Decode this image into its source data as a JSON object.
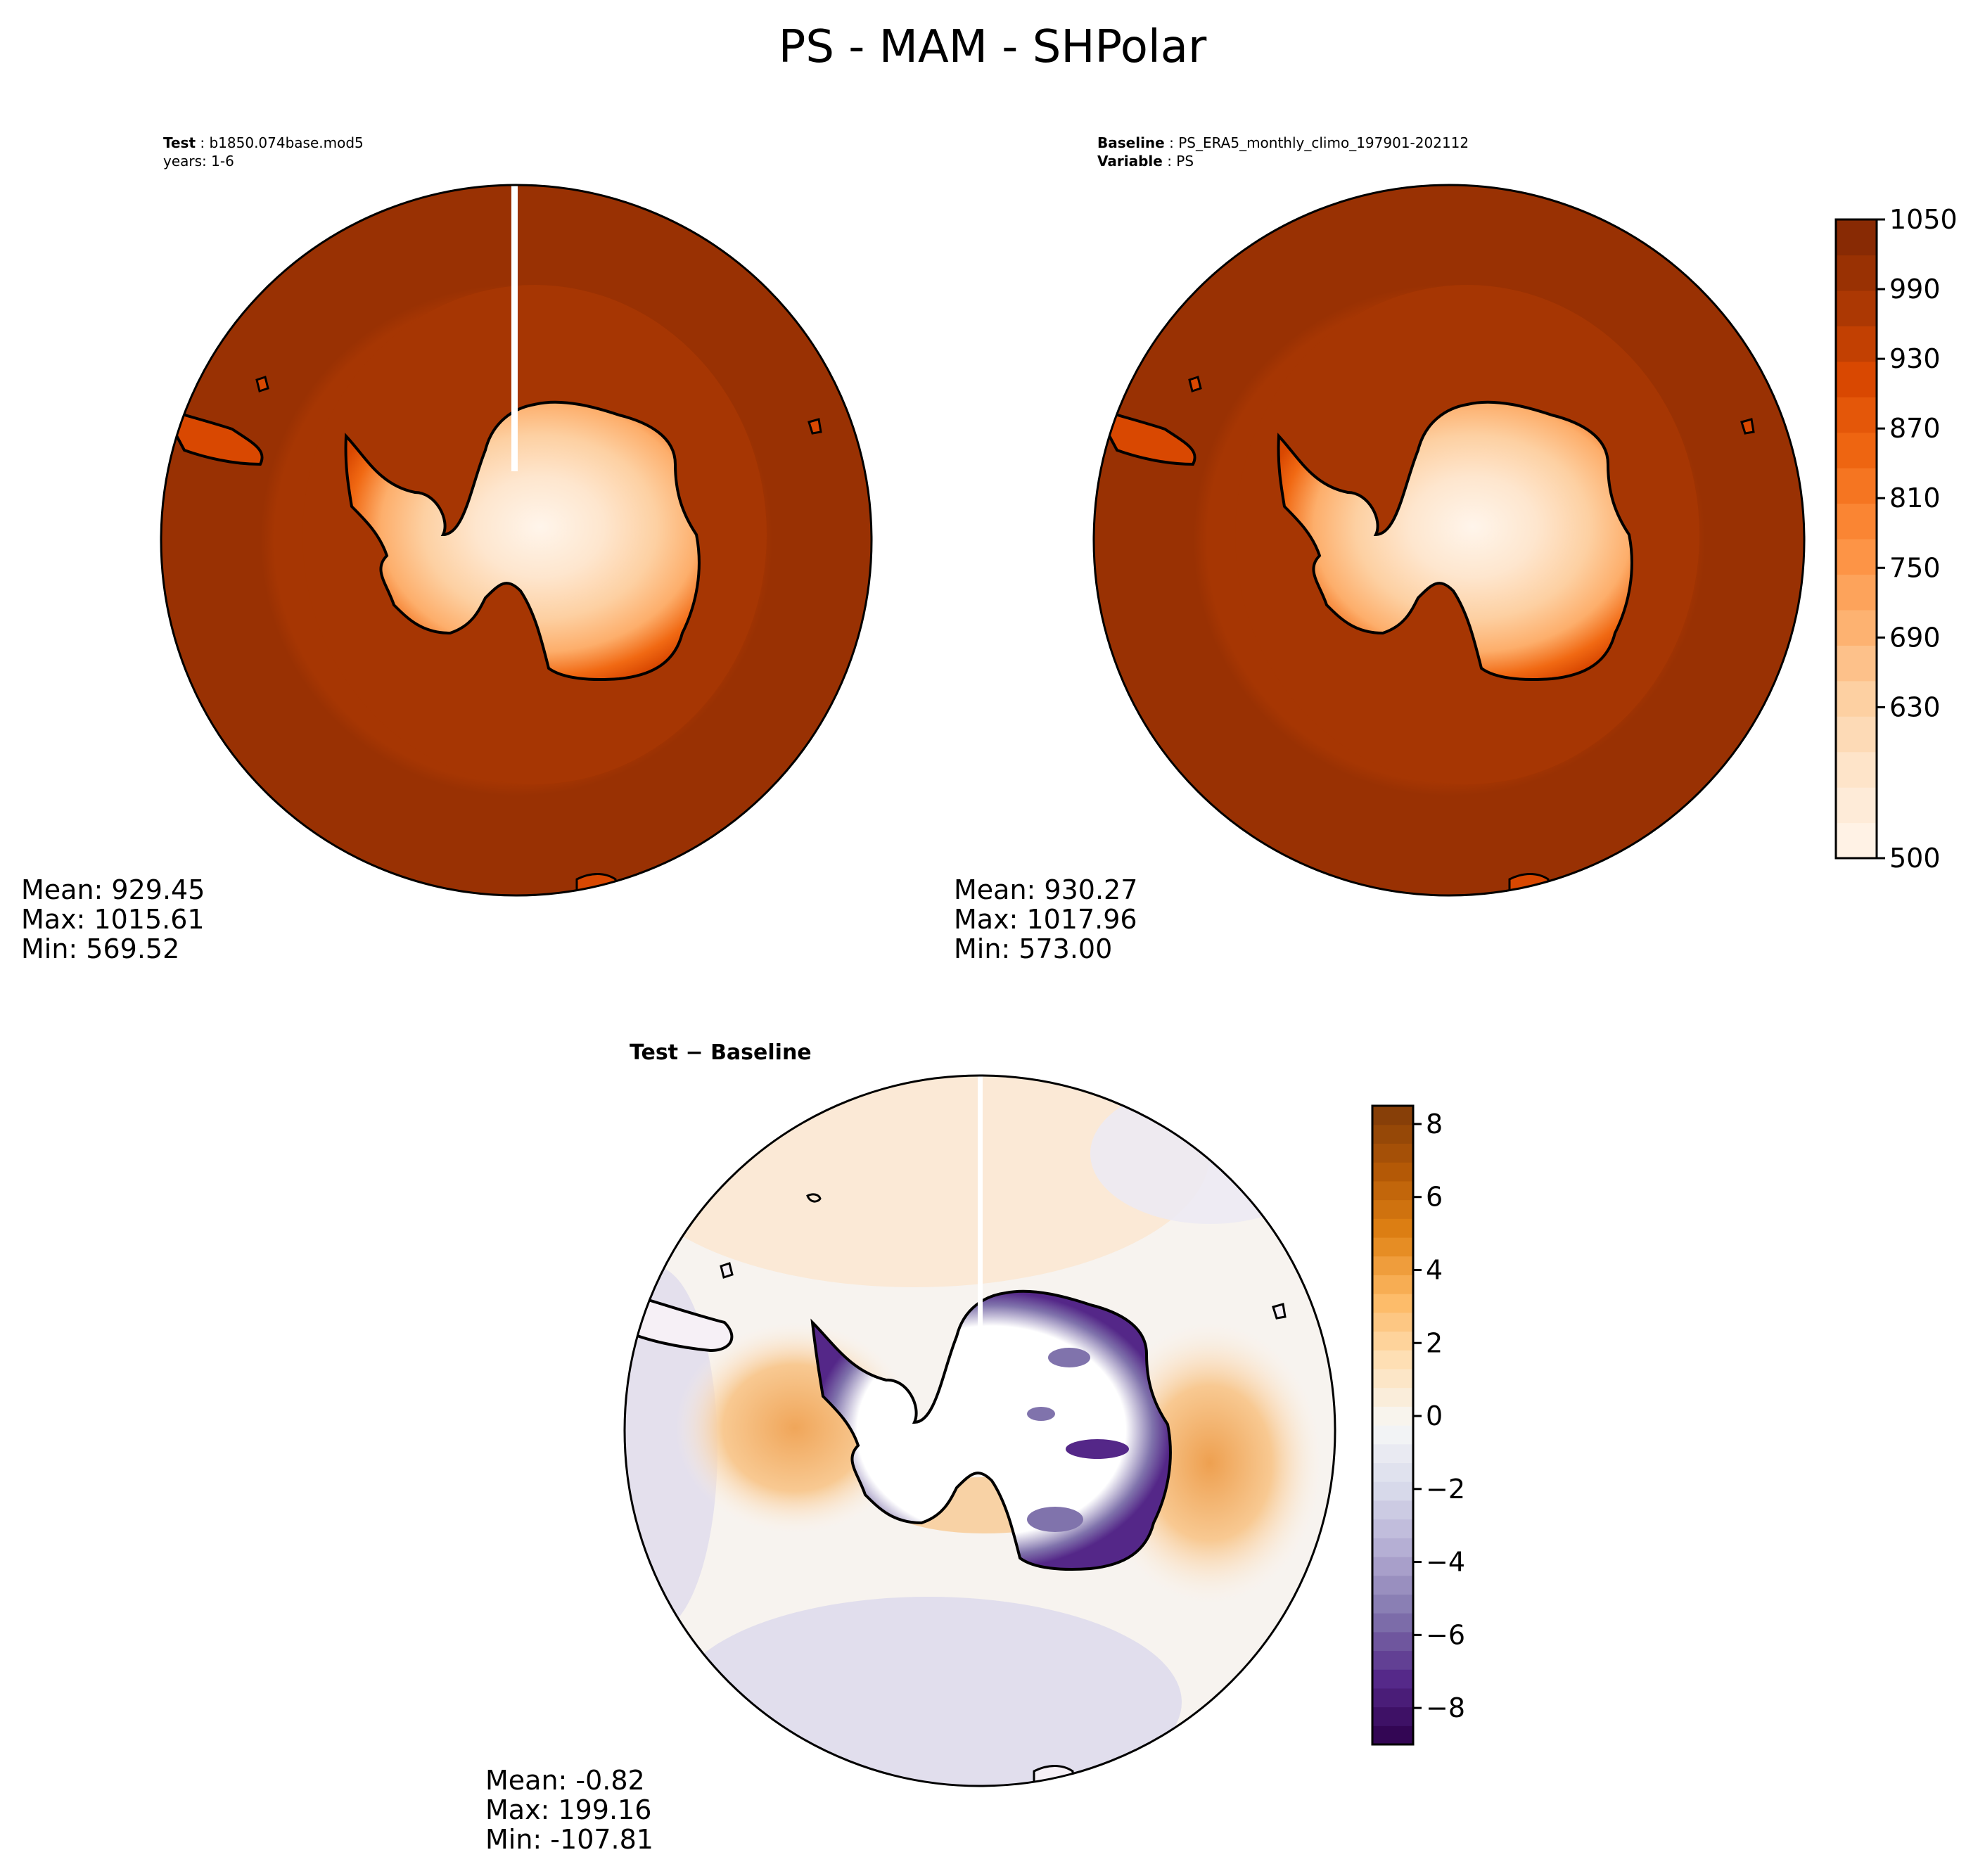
{
  "figure": {
    "title": "PS - MAM - SHPolar"
  },
  "panels": {
    "test": {
      "header_key": "Test",
      "header_value": "b1850.074base.mod5",
      "header_line2": "years: 1-6",
      "stats": {
        "mean": "Mean: 929.45",
        "max": "Max: 1015.61",
        "min": "Min: 569.52"
      }
    },
    "baseline": {
      "header_key": "Baseline",
      "header_value": "PS_ERA5_monthly_climo_197901-202112",
      "header_key2": "Variable",
      "header_value2": "PS",
      "stats": {
        "mean": "Mean: 930.27",
        "max": "Max: 1017.96",
        "min": "Min: 573.00"
      }
    },
    "diff": {
      "title_a": "Test",
      "title_sep": " − ",
      "title_b": "Baseline",
      "stats": {
        "mean": "Mean: -0.82",
        "max": "Max: 199.16",
        "min": "Min: -107.81"
      }
    }
  },
  "chart_data": [
    {
      "type": "heatmap",
      "projection": "south-polar-stereographic",
      "variable": "PS",
      "colormap": "Oranges",
      "colorbar": {
        "range": [
          500,
          1050
        ],
        "levels": [
          500,
          530,
          560,
          590,
          620,
          650,
          680,
          710,
          740,
          770,
          800,
          830,
          860,
          890,
          920,
          950,
          980,
          1010,
          1050
        ],
        "tick_values": [
          500,
          630,
          690,
          750,
          810,
          870,
          930,
          990,
          1050
        ],
        "tick_labels": [
          "500",
          "630",
          "690",
          "750",
          "810",
          "870",
          "930",
          "990",
          "1050"
        ]
      },
      "colors": [
        "#fff5eb",
        "#fee6ce",
        "#fdd0a2",
        "#fdae6b",
        "#fd8d3c",
        "#f16913",
        "#d94801",
        "#a63603",
        "#7f2704"
      ]
    },
    {
      "type": "heatmap",
      "projection": "south-polar-stereographic",
      "variable": "PS difference",
      "colormap": "PuOr_r",
      "colorbar": {
        "range": [
          -9,
          8.5
        ],
        "tick_values": [
          -8,
          -6,
          -4,
          -2,
          0,
          2,
          4,
          6,
          8
        ],
        "tick_labels": [
          "−8",
          "−6",
          "−4",
          "−2",
          "0",
          "2",
          "4",
          "6",
          "8"
        ]
      },
      "colors": [
        "#2d004b",
        "#542788",
        "#8073ac",
        "#b2abd2",
        "#d8daeb",
        "#f7f7f7",
        "#fee0b6",
        "#fdb863",
        "#e08214",
        "#b35806",
        "#7f3b08"
      ]
    }
  ]
}
